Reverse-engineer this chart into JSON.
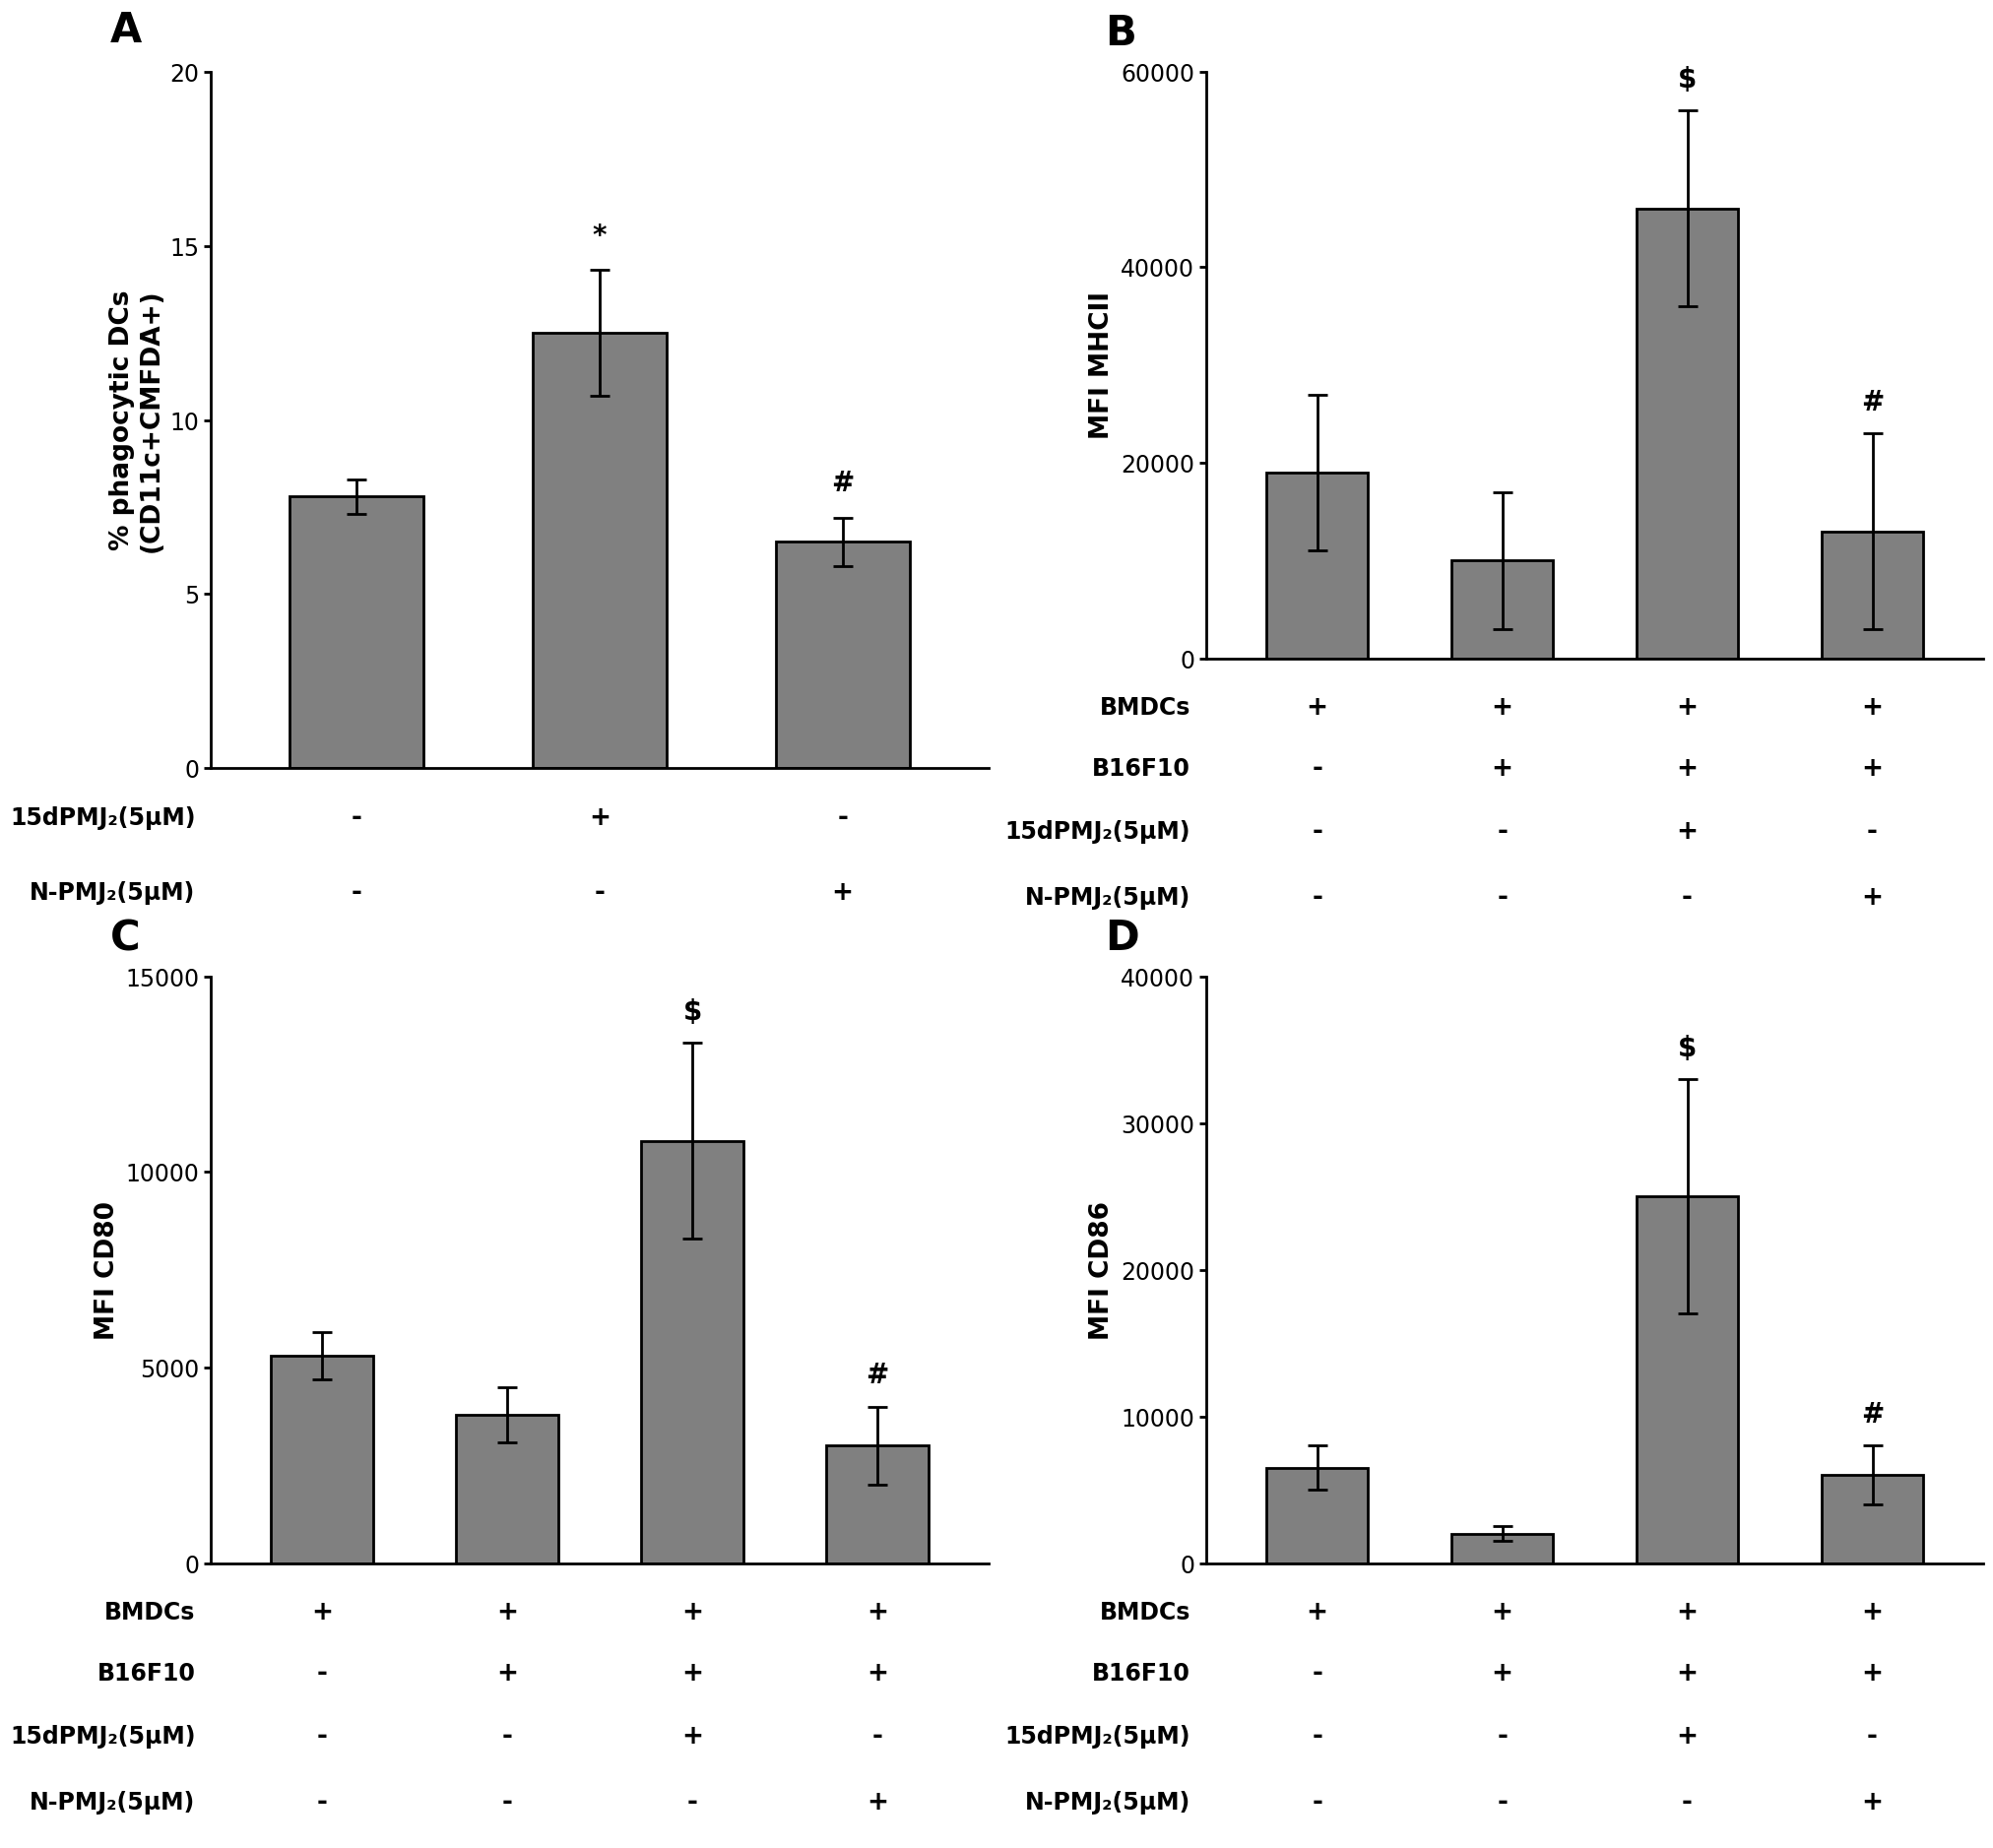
{
  "panel_A": {
    "title": "A",
    "ylabel": "% phagocytic DCs\n(CD11c+CMFDA+)",
    "values": [
      7.8,
      12.5,
      6.5
    ],
    "errors": [
      0.5,
      1.8,
      0.7
    ],
    "ylim": [
      0,
      20
    ],
    "yticks": [
      0,
      5,
      10,
      15,
      20
    ],
    "significance": [
      "",
      "*",
      "#"
    ],
    "row_labels": [
      "15dPMJ₂(5μM)",
      "N-PMJ₂(5μM)"
    ],
    "row_values": [
      [
        "-",
        "+",
        "-"
      ],
      [
        "-",
        "-",
        "+"
      ]
    ]
  },
  "panel_B": {
    "title": "B",
    "ylabel": "MFI MHCII",
    "values": [
      19000,
      10000,
      46000,
      13000
    ],
    "errors": [
      8000,
      7000,
      10000,
      10000
    ],
    "ylim": [
      0,
      60000
    ],
    "yticks": [
      0,
      20000,
      40000,
      60000
    ],
    "significance": [
      "",
      "",
      "$",
      "#"
    ],
    "row_labels": [
      "BMDCs",
      "B16F10",
      "15dPMJ₂(5μM)",
      "N-PMJ₂(5μM)"
    ],
    "row_values": [
      [
        "+",
        "+",
        "+",
        "+"
      ],
      [
        "-",
        "+",
        "+",
        "+"
      ],
      [
        "-",
        "-",
        "+",
        "-"
      ],
      [
        "-",
        "-",
        "-",
        "+"
      ]
    ]
  },
  "panel_C": {
    "title": "C",
    "ylabel": "MFI CD80",
    "values": [
      5300,
      3800,
      10800,
      3000
    ],
    "errors": [
      600,
      700,
      2500,
      1000
    ],
    "ylim": [
      0,
      15000
    ],
    "yticks": [
      0,
      5000,
      10000,
      15000
    ],
    "significance": [
      "",
      "",
      "$",
      "#"
    ],
    "row_labels": [
      "BMDCs",
      "B16F10",
      "15dPMJ₂(5μM)",
      "N-PMJ₂(5μM)"
    ],
    "row_values": [
      [
        "+",
        "+",
        "+",
        "+"
      ],
      [
        "-",
        "+",
        "+",
        "+"
      ],
      [
        "-",
        "-",
        "+",
        "-"
      ],
      [
        "-",
        "-",
        "-",
        "+"
      ]
    ]
  },
  "panel_D": {
    "title": "D",
    "ylabel": "MFI CD86",
    "values": [
      6500,
      2000,
      25000,
      6000
    ],
    "errors": [
      1500,
      500,
      8000,
      2000
    ],
    "ylim": [
      0,
      40000
    ],
    "yticks": [
      0,
      10000,
      20000,
      30000,
      40000
    ],
    "significance": [
      "",
      "",
      "$",
      "#"
    ],
    "row_labels": [
      "BMDCs",
      "B16F10",
      "15dPMJ₂(5μM)",
      "N-PMJ₂(5μM)"
    ],
    "row_values": [
      [
        "+",
        "+",
        "+",
        "+"
      ],
      [
        "-",
        "+",
        "+",
        "+"
      ],
      [
        "-",
        "-",
        "+",
        "-"
      ],
      [
        "-",
        "-",
        "-",
        "+"
      ]
    ]
  },
  "bar_width": 0.55,
  "bar_color": "#808080",
  "bar_edgecolor": "#000000",
  "error_capsize": 7,
  "error_linewidth": 2.0,
  "sig_fontsize": 20,
  "ylabel_fontsize": 19,
  "tick_fontsize": 17,
  "panel_label_fontsize": 30,
  "row_label_fontsize": 17,
  "pm_fontsize": 19,
  "background_color": "#ffffff",
  "spine_linewidth": 2.0
}
